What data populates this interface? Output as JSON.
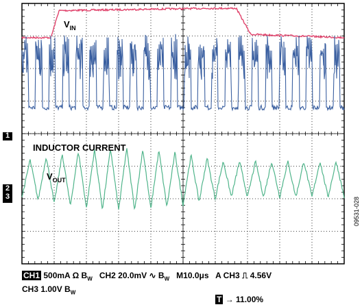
{
  "chart_data": {
    "type": "line",
    "grid": "10 x 8 divisions, dashed",
    "divisions": {
      "x": 10,
      "y": 8
    },
    "series": [
      {
        "name": "VIN",
        "channel": "CH2",
        "color": "#e0426b",
        "profile_divisions": [
          [
            0,
            6.95
          ],
          [
            1.8,
            6.95
          ],
          [
            2.3,
            7.78
          ],
          [
            11.7,
            7.85
          ],
          [
            13.3,
            7.85
          ],
          [
            14.2,
            7.05
          ],
          [
            20,
            6.95
          ]
        ]
      },
      {
        "name": "INDUCTOR CURRENT",
        "channel": "CH1",
        "color": "#3a5fa0",
        "pulse_period_us": 4.2,
        "pulse_width_us": 2.0,
        "high_divisions": 6.2,
        "low_divisions": 4.8
      },
      {
        "name": "VOUT",
        "channel": "CH3",
        "color": "#4fb48a",
        "triangle_period_us": 5.0,
        "center_divisions": 2.6,
        "amplitude_divisions": [
          0.55,
          0.95
        ]
      }
    ],
    "labels": {
      "vin": "V",
      "vin_sub": "IN",
      "inductor": "INDUCTOR CURRENT",
      "vout": "V",
      "vout_sub": "OUT"
    },
    "markers": {
      "ch1": "1",
      "ch2": "2",
      "ch3": "3"
    }
  },
  "status": {
    "ch1_tag": "CH1",
    "ch1": "500mA Ω B",
    "ch1_bw": "W",
    "ch2": "CH2 20.0mV ∿ B",
    "ch2_bw": "W",
    "timebase": "M10.0μs",
    "trigger": "A CH3 ⎍ 4.56V",
    "ch3": "CH3 1.00V B",
    "ch3_bw": "W",
    "trig_tag": "T",
    "trigger_pos": "→ 11.00%"
  },
  "figure_id": "09531-028"
}
